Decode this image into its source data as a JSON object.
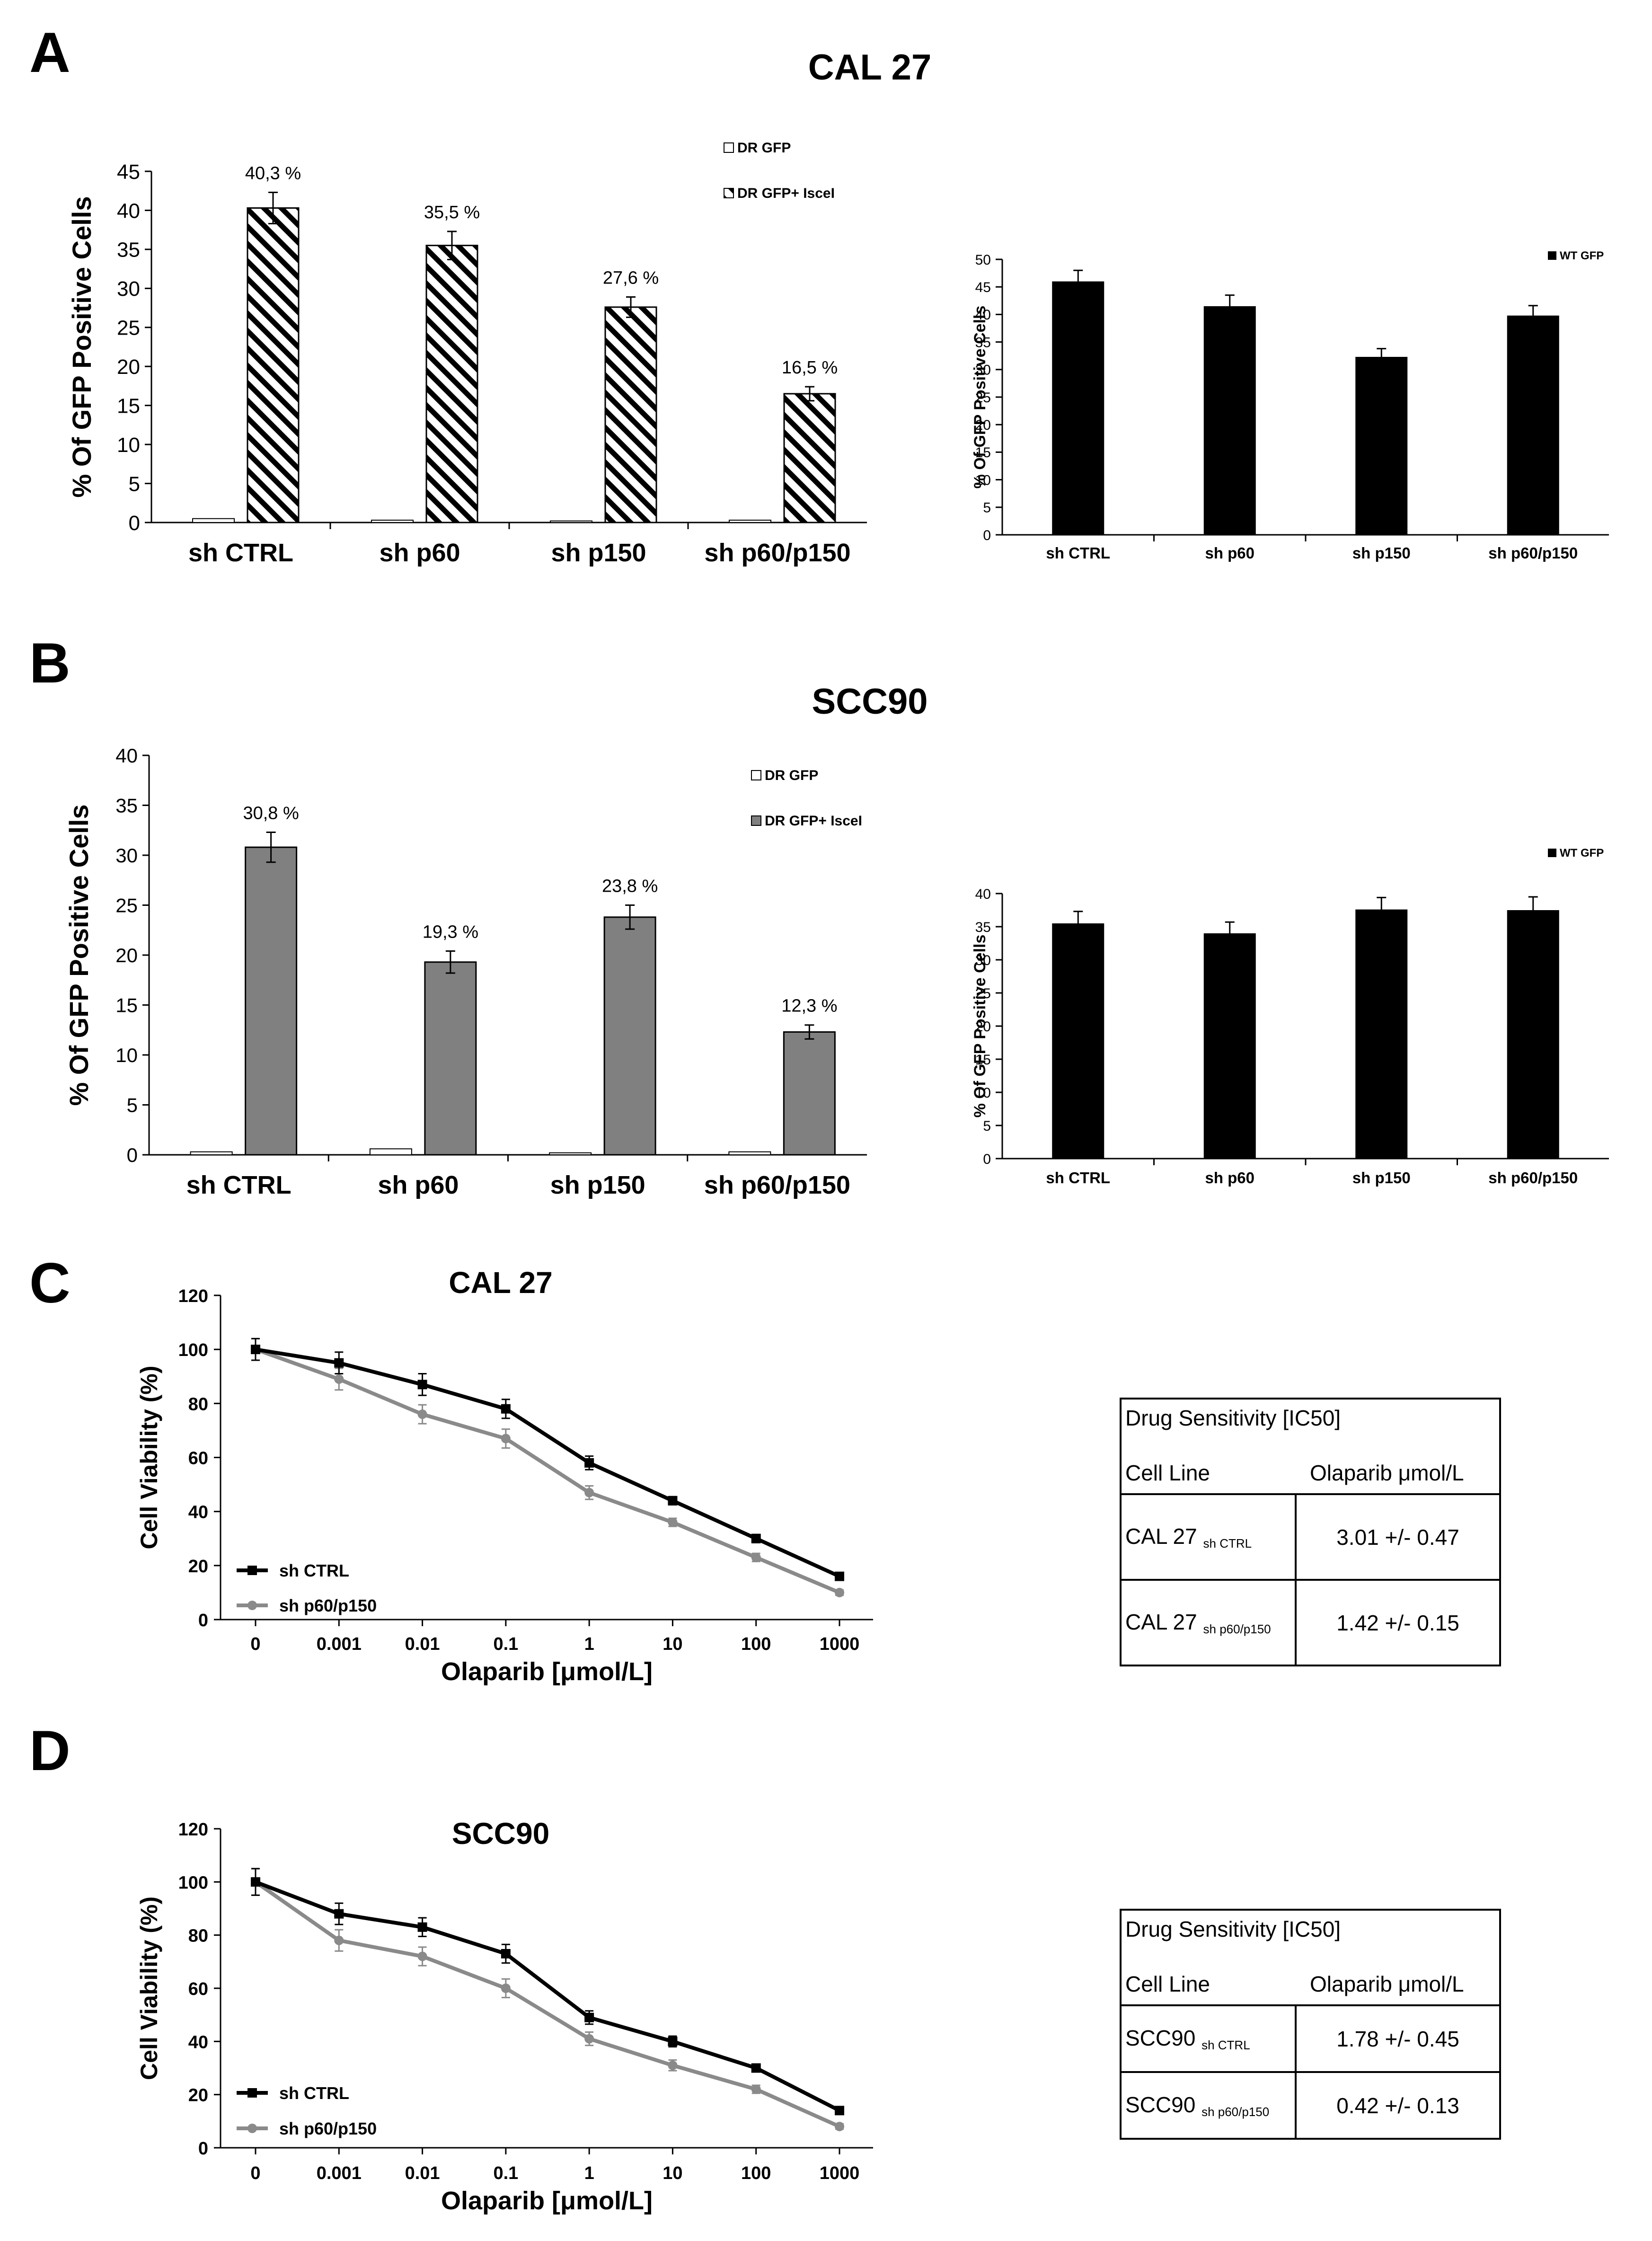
{
  "panel_letters": [
    "A",
    "B",
    "C",
    "D"
  ],
  "colors": {
    "black": "#000000",
    "gray": "#7f7f7f",
    "bar_gray": "#808080",
    "light_gray": "#8a8a8a"
  },
  "chart_data": [
    {
      "id": "A-left",
      "type": "bar",
      "title": "CAL 27",
      "categories": [
        "sh CTRL",
        "sh p60",
        "sh p150",
        "sh p60/p150"
      ],
      "ylabel": "% Of GFP Positive Cells",
      "ylim": [
        0,
        45
      ],
      "ytick_step": 5,
      "ytick_labels": [
        "0",
        "5",
        "10",
        "15",
        "20",
        "25",
        "30",
        "35",
        "40",
        "45"
      ],
      "legend_position": "top-right",
      "series": [
        {
          "name": "DR GFP",
          "fill": "white",
          "values": [
            0.5,
            0.3,
            0.2,
            0.3
          ]
        },
        {
          "name": "DR GFP+ IsceI",
          "fill": "hatch",
          "values": [
            40.3,
            35.5,
            27.6,
            16.5
          ],
          "errors": [
            2.0,
            1.8,
            1.3,
            0.9
          ],
          "data_labels": [
            "40,3 %",
            "35,5 %",
            "27,6 %",
            "16,5 %"
          ]
        }
      ]
    },
    {
      "id": "A-right",
      "type": "bar",
      "categories": [
        "sh CTRL",
        "sh p60",
        "sh p150",
        "sh p60/p150"
      ],
      "ylabel": "% Of GFP Positive Cells",
      "ylim": [
        0,
        50
      ],
      "ytick_step": 5,
      "ytick_labels": [
        "0",
        "5",
        "10",
        "15",
        "20",
        "25",
        "30",
        "35",
        "40",
        "45",
        "50"
      ],
      "legend_position": "top-right",
      "series": [
        {
          "name": "WT GFP",
          "fill": "black",
          "values": [
            46,
            41.5,
            32.3,
            39.8
          ],
          "errors": [
            2.0,
            2.0,
            1.5,
            1.8
          ]
        }
      ]
    },
    {
      "id": "B-left",
      "type": "bar",
      "title": "SCC90",
      "categories": [
        "sh CTRL",
        "sh p60",
        "sh p150",
        "sh p60/p150"
      ],
      "ylabel": "% Of GFP Positive Cells",
      "ylim": [
        0,
        40
      ],
      "ytick_step": 5,
      "ytick_labels": [
        "0",
        "5",
        "10",
        "15",
        "20",
        "25",
        "30",
        "35",
        "40"
      ],
      "legend_position": "top-right",
      "series": [
        {
          "name": "DR GFP",
          "fill": "white",
          "values": [
            0.3,
            0.6,
            0.2,
            0.3
          ]
        },
        {
          "name": "DR GFP+ IsceI",
          "fill": "gray",
          "values": [
            30.8,
            19.3,
            23.8,
            12.3
          ],
          "errors": [
            1.5,
            1.1,
            1.2,
            0.7
          ],
          "data_labels": [
            "30,8 %",
            "19,3 %",
            "23,8 %",
            "12,3 %"
          ]
        }
      ]
    },
    {
      "id": "B-right",
      "type": "bar",
      "categories": [
        "sh CTRL",
        "sh p60",
        "sh p150",
        "sh p60/p150"
      ],
      "ylabel": "% Of GFP Positive Cells",
      "ylim": [
        0,
        40
      ],
      "ytick_step": 5,
      "ytick_labels": [
        "0",
        "5",
        "10",
        "15",
        "20",
        "25",
        "30",
        "35",
        "40"
      ],
      "legend_position": "top-right",
      "series": [
        {
          "name": "WT GFP",
          "fill": "black",
          "values": [
            35.5,
            34,
            37.6,
            37.5
          ],
          "errors": [
            1.8,
            1.7,
            1.8,
            2.0
          ]
        }
      ]
    },
    {
      "id": "C",
      "type": "line",
      "title": "CAL 27",
      "categories": [
        "0",
        "0.001",
        "0.01",
        "0.1",
        "1",
        "10",
        "100",
        "1000"
      ],
      "xlabel": "Olaparib [μmol/L]",
      "ylabel": "Cell Viability (%)",
      "ylim": [
        0,
        120
      ],
      "ytick_step": 20,
      "ytick_labels": [
        "0",
        "20",
        "40",
        "60",
        "80",
        "100",
        "120"
      ],
      "legend_position": "bottom-left",
      "series": [
        {
          "name": "sh CTRL",
          "color": "black",
          "values": [
            100,
            95,
            87,
            78,
            58,
            44,
            30,
            16
          ],
          "errors": [
            4,
            4,
            4,
            3.5,
            2.5,
            1.5,
            1.5,
            1
          ]
        },
        {
          "name": "sh p60/p150",
          "color": "gray",
          "values": [
            100,
            89,
            76,
            67,
            47,
            36,
            23,
            10
          ],
          "errors": [
            4,
            4,
            3.5,
            3.5,
            2.5,
            1.5,
            1.5,
            1
          ]
        }
      ]
    },
    {
      "id": "D",
      "type": "line",
      "title": "SCC90",
      "categories": [
        "0",
        "0.001",
        "0.01",
        "0.1",
        "1",
        "10",
        "100",
        "1000"
      ],
      "xlabel": "Olaparib [μmol/L]",
      "ylabel": "Cell Viability (%)",
      "ylim": [
        0,
        120
      ],
      "ytick_step": 20,
      "ytick_labels": [
        "0",
        "20",
        "40",
        "60",
        "80",
        "100",
        "120"
      ],
      "legend_position": "bottom-left",
      "series": [
        {
          "name": "sh CTRL",
          "color": "black",
          "values": [
            100,
            88,
            83,
            73,
            49,
            40,
            30,
            14
          ],
          "errors": [
            5,
            4,
            3.5,
            3.5,
            2.5,
            2,
            1.5,
            1
          ]
        },
        {
          "name": "sh p60/p150",
          "color": "gray",
          "values": [
            100,
            78,
            72,
            60,
            41,
            31,
            22,
            8
          ],
          "errors": [
            5,
            4,
            3.5,
            3.5,
            2.5,
            2,
            1.5,
            1
          ]
        }
      ]
    }
  ],
  "tables": [
    {
      "id": "C-table",
      "header": "Drug Sensitivity [IC50]",
      "col1": "Cell Line",
      "col2": "Olaparib μmol/L",
      "rows": [
        {
          "line": "CAL 27",
          "sub": "sh CTRL",
          "value": "3.01 +/- 0.47"
        },
        {
          "line": "CAL 27",
          "sub": "sh p60/p150",
          "value": "1.42 +/- 0.15"
        }
      ]
    },
    {
      "id": "D-table",
      "header": "Drug Sensitivity [IC50]",
      "col1": "Cell Line",
      "col2": "Olaparib μmol/L",
      "rows": [
        {
          "line": "SCC90",
          "sub": "sh CTRL",
          "value": "1.78 +/- 0.45"
        },
        {
          "line": "SCC90",
          "sub": "sh p60/p150",
          "value": "0.42 +/- 0.13"
        }
      ]
    }
  ]
}
